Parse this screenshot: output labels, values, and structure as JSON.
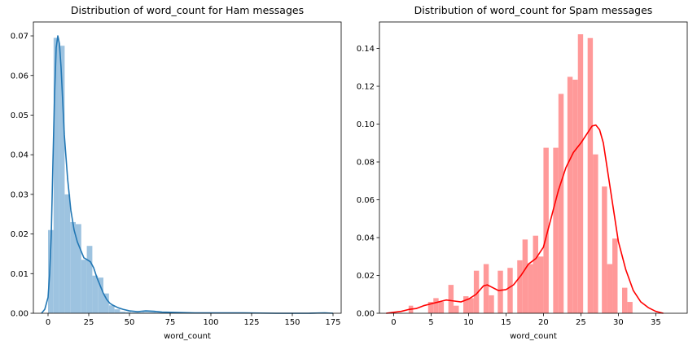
{
  "colors": {
    "ham_hist": "#9dc3e0",
    "ham_kde": "#2277b4",
    "spam_hist": "#ff9999",
    "spam_kde": "#ff0000"
  },
  "chart_data": [
    {
      "type": "bar",
      "title": "Distribution of word_count for Ham messages",
      "xlabel": "word_count",
      "ylabel": "",
      "xlim": [
        -9,
        180
      ],
      "ylim": [
        0,
        0.0735
      ],
      "xticks": [
        0,
        25,
        50,
        75,
        100,
        125,
        150,
        175
      ],
      "yticks": [
        0.0,
        0.01,
        0.02,
        0.03,
        0.04,
        0.05,
        0.06,
        0.07
      ],
      "ytick_format": 2,
      "grid": false,
      "histogram": {
        "bins": [
          [
            0,
            3.4,
            0.021
          ],
          [
            3.4,
            6.8,
            0.0695
          ],
          [
            6.8,
            10.2,
            0.0675
          ],
          [
            10.2,
            13.6,
            0.03
          ],
          [
            13.6,
            17.0,
            0.023
          ],
          [
            17.0,
            20.4,
            0.0225
          ],
          [
            20.4,
            23.8,
            0.0135
          ],
          [
            23.8,
            27.2,
            0.017
          ],
          [
            27.2,
            30.6,
            0.0095
          ],
          [
            30.6,
            34.0,
            0.009
          ],
          [
            34.0,
            37.4,
            0.005
          ],
          [
            37.4,
            40.8,
            0.002
          ],
          [
            40.8,
            44.2,
            0.001
          ],
          [
            44.2,
            47.6,
            0.0004
          ],
          [
            47.6,
            51.0,
            0.0003
          ],
          [
            51.0,
            58.0,
            0.0002
          ],
          [
            58.0,
            66.0,
            0.0003
          ],
          [
            66.0,
            75.0,
            0.0002
          ],
          [
            75.0,
            85.0,
            0.0002
          ],
          [
            85.0,
            100.0,
            0.0001
          ],
          [
            120.0,
            130.0,
            0.0001
          ],
          [
            165.0,
            172.0,
            0.0001
          ]
        ]
      },
      "kde": {
        "x": [
          -4,
          -2,
          0,
          1,
          2,
          3,
          4,
          5,
          6,
          7,
          8,
          10,
          12,
          14,
          16,
          18,
          20,
          22,
          24,
          26,
          28,
          30,
          32,
          34,
          36,
          38,
          40,
          43,
          46,
          50,
          55,
          60,
          65,
          70,
          80,
          90,
          100,
          120,
          140,
          160,
          170,
          175
        ],
        "y": [
          0.0,
          0.001,
          0.004,
          0.01,
          0.02,
          0.038,
          0.055,
          0.067,
          0.07,
          0.068,
          0.062,
          0.045,
          0.034,
          0.026,
          0.021,
          0.018,
          0.016,
          0.014,
          0.0135,
          0.013,
          0.0115,
          0.009,
          0.007,
          0.005,
          0.0035,
          0.0025,
          0.002,
          0.0014,
          0.001,
          0.0006,
          0.0004,
          0.0006,
          0.0005,
          0.0003,
          0.0002,
          0.0001,
          0.0001,
          0.0001,
          0.0,
          0.0,
          0.0001,
          0.0
        ]
      }
    },
    {
      "type": "bar",
      "title": "Distribution of word_count for Spam messages",
      "xlabel": "word_count",
      "ylabel": "",
      "xlim": [
        -1.9,
        39.2
      ],
      "ylim": [
        0,
        0.154
      ],
      "xticks": [
        0,
        5,
        10,
        15,
        20,
        25,
        30,
        35
      ],
      "yticks": [
        0.0,
        0.02,
        0.04,
        0.06,
        0.08,
        0.1,
        0.12,
        0.14
      ],
      "ytick_format": 2,
      "grid": false,
      "histogram": {
        "bins": [
          [
            2.0,
            2.6,
            0.004
          ],
          [
            4.6,
            5.3,
            0.006
          ],
          [
            5.3,
            6.0,
            0.008
          ],
          [
            6.0,
            6.7,
            0.006
          ],
          [
            7.3,
            8.0,
            0.015
          ],
          [
            8.0,
            8.7,
            0.004
          ],
          [
            9.3,
            10.0,
            0.009
          ],
          [
            10.0,
            10.7,
            0.008
          ],
          [
            10.7,
            11.4,
            0.0225
          ],
          [
            12.0,
            12.7,
            0.026
          ],
          [
            12.7,
            13.4,
            0.0095
          ],
          [
            13.9,
            14.6,
            0.0225
          ],
          [
            15.2,
            15.9,
            0.024
          ],
          [
            16.5,
            17.2,
            0.028
          ],
          [
            17.2,
            17.9,
            0.039
          ],
          [
            17.9,
            18.6,
            0.026
          ],
          [
            18.6,
            19.3,
            0.041
          ],
          [
            19.3,
            20.0,
            0.03
          ],
          [
            20.0,
            20.7,
            0.0875
          ],
          [
            21.3,
            22.0,
            0.0875
          ],
          [
            22.0,
            22.7,
            0.116
          ],
          [
            23.2,
            23.9,
            0.125
          ],
          [
            23.9,
            24.6,
            0.1235
          ],
          [
            24.6,
            25.3,
            0.1475
          ],
          [
            25.9,
            26.6,
            0.1455
          ],
          [
            26.6,
            27.3,
            0.084
          ],
          [
            27.8,
            28.5,
            0.067
          ],
          [
            28.5,
            29.2,
            0.026
          ],
          [
            29.2,
            29.9,
            0.0395
          ],
          [
            30.5,
            31.2,
            0.0135
          ],
          [
            31.2,
            31.9,
            0.006
          ]
        ]
      },
      "kde": {
        "x": [
          -1,
          0,
          1,
          2,
          3,
          4,
          5,
          6,
          7,
          8,
          9,
          10,
          11,
          12,
          12.5,
          13,
          14,
          15,
          16,
          17,
          18,
          19,
          20,
          21,
          22,
          23,
          24,
          25,
          26,
          26.5,
          27,
          27.5,
          28,
          29,
          30,
          31,
          32,
          33,
          34,
          35,
          36
        ],
        "y": [
          0.0,
          0.0005,
          0.001,
          0.002,
          0.0025,
          0.004,
          0.005,
          0.006,
          0.007,
          0.0065,
          0.006,
          0.0075,
          0.01,
          0.0145,
          0.015,
          0.014,
          0.012,
          0.0125,
          0.015,
          0.02,
          0.026,
          0.029,
          0.035,
          0.05,
          0.065,
          0.077,
          0.085,
          0.09,
          0.096,
          0.099,
          0.0995,
          0.097,
          0.09,
          0.064,
          0.038,
          0.023,
          0.012,
          0.006,
          0.003,
          0.001,
          0.0
        ]
      }
    }
  ]
}
